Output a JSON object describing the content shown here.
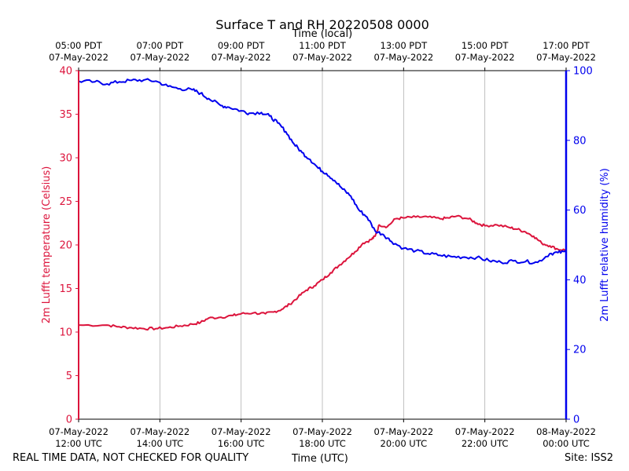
{
  "chart_data": {
    "type": "line",
    "title": "Surface T and RH 20220508 0000",
    "xlabel": "Time (UTC)",
    "xlabel_top": "Time (local)",
    "ylabel_left": "2m Lufft temperature (Celsius)",
    "ylabel_right": "2m Lufft relative humidity (%)",
    "xlim_hours": [
      12,
      24
    ],
    "ylim_left": [
      0,
      40
    ],
    "ylim_right": [
      0,
      100
    ],
    "yticks_left": [
      0,
      5,
      10,
      15,
      20,
      25,
      30,
      35,
      40
    ],
    "yticks_right": [
      0,
      20,
      40,
      60,
      80,
      100
    ],
    "grid": "vertical",
    "bottom_ticks": [
      {
        "hour": 12,
        "date": "07-May-2022",
        "time": "12:00 UTC"
      },
      {
        "hour": 14,
        "date": "07-May-2022",
        "time": "14:00 UTC"
      },
      {
        "hour": 16,
        "date": "07-May-2022",
        "time": "16:00 UTC"
      },
      {
        "hour": 18,
        "date": "07-May-2022",
        "time": "18:00 UTC"
      },
      {
        "hour": 20,
        "date": "07-May-2022",
        "time": "20:00 UTC"
      },
      {
        "hour": 22,
        "date": "07-May-2022",
        "time": "22:00 UTC"
      },
      {
        "hour": 24,
        "date": "08-May-2022",
        "time": "00:00 UTC"
      }
    ],
    "top_ticks": [
      {
        "hour": 12,
        "time": "05:00 PDT",
        "date": "07-May-2022"
      },
      {
        "hour": 14,
        "time": "07:00 PDT",
        "date": "07-May-2022"
      },
      {
        "hour": 16,
        "time": "09:00 PDT",
        "date": "07-May-2022"
      },
      {
        "hour": 18,
        "time": "11:00 PDT",
        "date": "07-May-2022"
      },
      {
        "hour": 20,
        "time": "13:00 PDT",
        "date": "07-May-2022"
      },
      {
        "hour": 22,
        "time": "15:00 PDT",
        "date": "07-May-2022"
      },
      {
        "hour": 24,
        "time": "17:00 PDT",
        "date": "07-May-2022"
      }
    ],
    "series": [
      {
        "name": "2m Lufft temperature",
        "axis": "left",
        "color": "#DC143C",
        "x": [
          12.0,
          12.7,
          13.0,
          13.3,
          13.6,
          13.9,
          14.2,
          14.5,
          14.8,
          15.0,
          15.2,
          15.5,
          15.8,
          16.0,
          16.3,
          16.6,
          16.8,
          17.0,
          17.2,
          17.4,
          17.6,
          17.8,
          18.0,
          18.2,
          18.4,
          18.6,
          18.8,
          19.0,
          19.2,
          19.3,
          19.4,
          19.6,
          19.8,
          20.0,
          20.3,
          20.6,
          20.9,
          21.1,
          21.3,
          21.6,
          21.8,
          22.0,
          22.3,
          22.6,
          22.8,
          23.0,
          23.2,
          23.4,
          23.6,
          23.8,
          24.0
        ],
        "values": [
          10.8,
          10.8,
          10.6,
          10.5,
          10.4,
          10.4,
          10.5,
          10.7,
          10.9,
          11.1,
          11.6,
          11.7,
          11.9,
          12.1,
          12.2,
          12.1,
          12.3,
          12.6,
          13.2,
          14.0,
          14.8,
          15.3,
          16.0,
          16.8,
          17.6,
          18.4,
          19.2,
          20.2,
          20.6,
          21.0,
          22.3,
          22.1,
          23.0,
          23.1,
          23.2,
          23.2,
          23.0,
          23.1,
          23.3,
          23.0,
          22.5,
          22.2,
          22.3,
          22.0,
          21.8,
          21.5,
          21.0,
          20.2,
          19.9,
          19.5,
          19.4
        ]
      },
      {
        "name": "2m Lufft relative humidity",
        "axis": "right",
        "color": "#0000EE",
        "x": [
          12.0,
          12.4,
          12.7,
          13.0,
          13.3,
          13.6,
          13.9,
          14.2,
          14.5,
          14.8,
          15.0,
          15.2,
          15.5,
          15.7,
          16.0,
          16.2,
          16.5,
          16.7,
          16.9,
          17.1,
          17.3,
          17.5,
          17.7,
          17.9,
          18.1,
          18.3,
          18.5,
          18.7,
          18.9,
          19.1,
          19.3,
          19.5,
          19.7,
          20.0,
          20.3,
          20.6,
          20.9,
          21.2,
          21.5,
          21.8,
          22.1,
          22.4,
          22.7,
          23.0,
          23.3,
          23.6,
          23.8,
          24.0
        ],
        "values": [
          97.0,
          96.8,
          96.2,
          96.8,
          97.2,
          97.3,
          97.0,
          95.5,
          94.8,
          94.5,
          93.5,
          92.0,
          90.0,
          89.5,
          88.5,
          87.8,
          88.0,
          87.0,
          85.0,
          82.5,
          79.0,
          76.5,
          74.5,
          72.0,
          70.5,
          68.5,
          66.0,
          64.0,
          60.0,
          58.0,
          54.0,
          53.0,
          51.0,
          49.0,
          48.3,
          47.5,
          47.0,
          46.6,
          46.5,
          46.4,
          45.5,
          45.0,
          45.4,
          45.2,
          45.0,
          47.5,
          47.8,
          48.0
        ]
      }
    ]
  },
  "footer": {
    "left_note": "REAL TIME DATA, NOT CHECKED FOR QUALITY",
    "xlabel": "Time (UTC)",
    "site": "Site: ISS2"
  },
  "colors": {
    "temperature": "#DC143C",
    "humidity": "#0000EE",
    "grid": "#b0b0b0"
  }
}
